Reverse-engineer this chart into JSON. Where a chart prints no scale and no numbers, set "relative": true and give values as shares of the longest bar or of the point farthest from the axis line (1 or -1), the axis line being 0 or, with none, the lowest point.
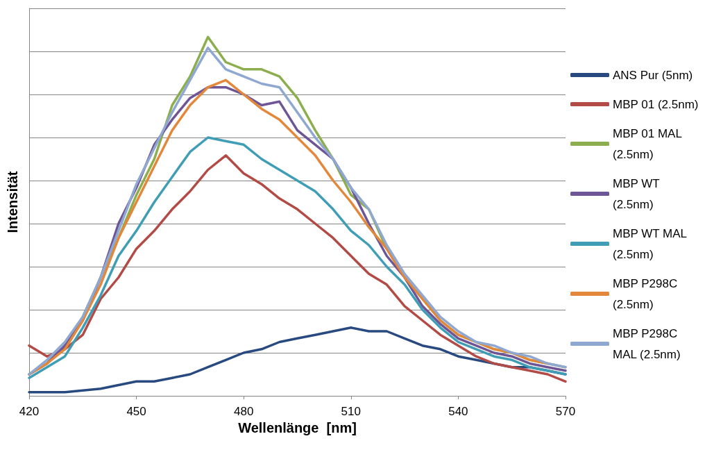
{
  "chart_data": {
    "type": "line",
    "xlabel": "Wellenlänge  [nm]",
    "ylabel": "Intensität",
    "relative": true,
    "grid": "y",
    "legend": "right",
    "marker": "none",
    "line_style": "solid",
    "xlim": [
      420,
      570
    ],
    "xticks": [
      420,
      450,
      480,
      510,
      540,
      570
    ],
    "x": [
      420,
      425,
      430,
      435,
      440,
      445,
      450,
      455,
      460,
      465,
      470,
      475,
      480,
      485,
      490,
      495,
      500,
      505,
      510,
      515,
      520,
      525,
      530,
      535,
      540,
      545,
      550,
      555,
      560,
      565,
      570
    ],
    "series": [
      {
        "name": "ANS Pur (5nm)",
        "color": "#284a80",
        "x": [
          420,
          430,
          440,
          445,
          450,
          455,
          460,
          465,
          470,
          475,
          480,
          485,
          490,
          495,
          500,
          505,
          510,
          515,
          520,
          525,
          530,
          535,
          540,
          545,
          550,
          555,
          560,
          565,
          570
        ],
        "values": [
          0.01,
          0.01,
          0.02,
          0.03,
          0.04,
          0.04,
          0.05,
          0.06,
          0.08,
          0.1,
          0.12,
          0.13,
          0.15,
          0.16,
          0.17,
          0.18,
          0.19,
          0.18,
          0.18,
          0.16,
          0.14,
          0.13,
          0.11,
          0.1,
          0.09,
          0.08,
          0.08,
          0.07,
          0.06
        ]
      },
      {
        "name": "MBP 01 (2.5nm)",
        "color": "#b24a46",
        "values": [
          0.14,
          0.11,
          0.13,
          0.17,
          0.27,
          0.33,
          0.41,
          0.46,
          0.52,
          0.57,
          0.63,
          0.67,
          0.62,
          0.59,
          0.55,
          0.52,
          0.48,
          0.44,
          0.39,
          0.34,
          0.31,
          0.25,
          0.21,
          0.17,
          0.14,
          0.11,
          0.09,
          0.08,
          0.07,
          0.06,
          0.04
        ]
      },
      {
        "name": "MBP 01 MAL (2.5nm)",
        "color": "#8cae4f",
        "values": [
          0.06,
          0.09,
          0.14,
          0.22,
          0.33,
          0.44,
          0.56,
          0.66,
          0.81,
          0.89,
          1.0,
          0.93,
          0.91,
          0.91,
          0.89,
          0.83,
          0.74,
          0.66,
          0.56,
          0.52,
          0.41,
          0.33,
          0.27,
          0.21,
          0.17,
          0.15,
          0.13,
          0.12,
          0.1,
          0.09,
          0.08
        ]
      },
      {
        "name": "MBP WT (2.5nm)",
        "color": "#6e5596",
        "values": [
          0.06,
          0.09,
          0.14,
          0.21,
          0.33,
          0.48,
          0.58,
          0.7,
          0.77,
          0.83,
          0.86,
          0.86,
          0.84,
          0.81,
          0.82,
          0.74,
          0.7,
          0.66,
          0.58,
          0.48,
          0.39,
          0.33,
          0.25,
          0.2,
          0.16,
          0.14,
          0.12,
          0.11,
          0.09,
          0.08,
          0.07
        ]
      },
      {
        "name": "MBP WT MAL (2.5nm)",
        "color": "#3f9db5",
        "values": [
          0.05,
          0.08,
          0.11,
          0.19,
          0.28,
          0.39,
          0.46,
          0.54,
          0.61,
          0.68,
          0.72,
          0.71,
          0.7,
          0.66,
          0.63,
          0.6,
          0.57,
          0.52,
          0.46,
          0.42,
          0.36,
          0.31,
          0.24,
          0.19,
          0.15,
          0.13,
          0.11,
          0.1,
          0.08,
          0.07,
          0.06
        ]
      },
      {
        "name": "MBP P298C (2.5nm)",
        "color": "#e3873a",
        "values": [
          0.06,
          0.09,
          0.13,
          0.21,
          0.31,
          0.44,
          0.54,
          0.64,
          0.74,
          0.81,
          0.86,
          0.88,
          0.84,
          0.8,
          0.77,
          0.72,
          0.67,
          0.6,
          0.54,
          0.47,
          0.41,
          0.33,
          0.27,
          0.21,
          0.17,
          0.15,
          0.13,
          0.12,
          0.1,
          0.09,
          null
        ]
      },
      {
        "name": "MBP P298C MAL (2.5nm)",
        "color": "#8fa8d2",
        "values": [
          0.06,
          0.1,
          0.15,
          0.22,
          0.33,
          0.46,
          0.59,
          0.69,
          0.79,
          0.88,
          0.97,
          0.91,
          0.89,
          0.87,
          0.86,
          0.79,
          0.72,
          0.66,
          0.58,
          0.52,
          0.42,
          0.34,
          0.28,
          0.22,
          0.18,
          0.15,
          0.14,
          0.12,
          0.11,
          0.09,
          0.08
        ]
      }
    ]
  }
}
